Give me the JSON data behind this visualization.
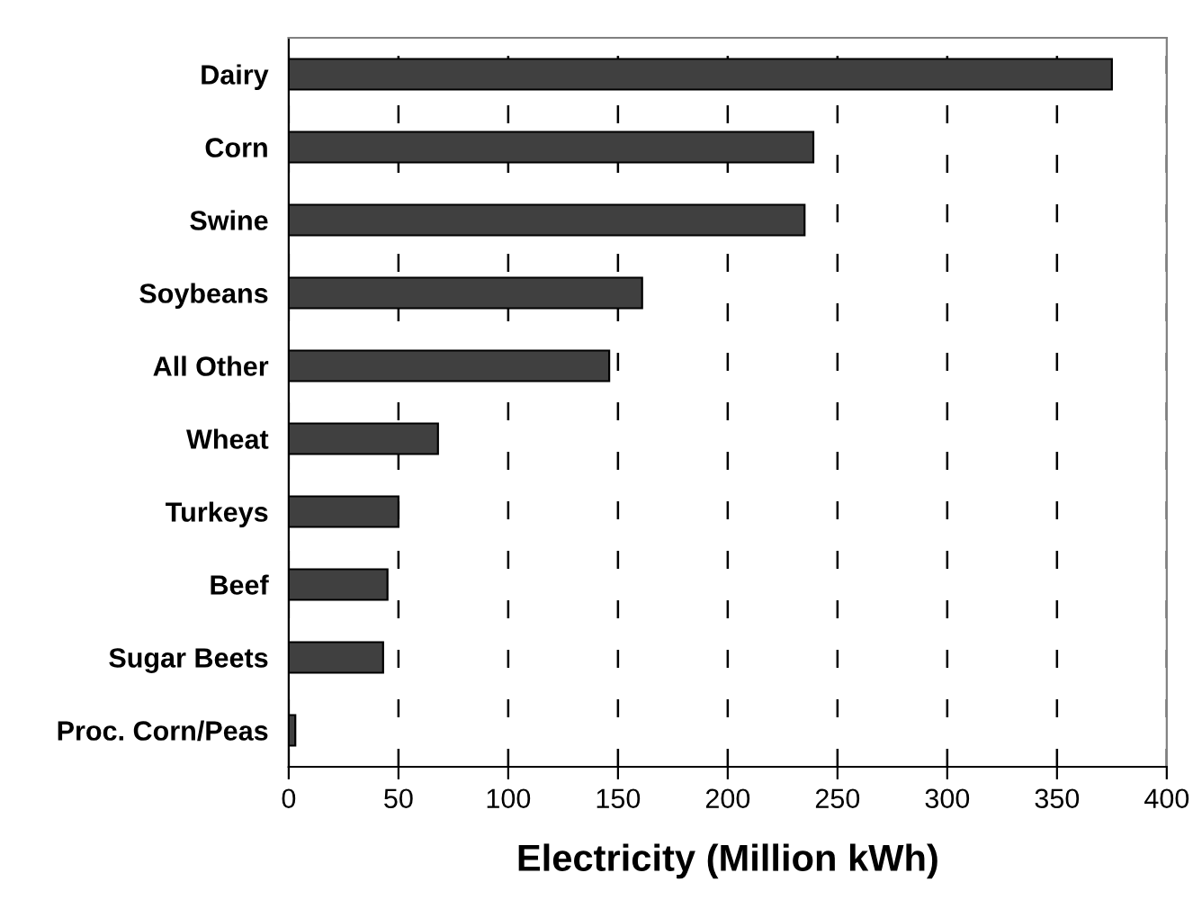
{
  "chart_data": {
    "type": "bar",
    "orientation": "horizontal",
    "xlabel": "Electricity (Million kWh)",
    "categories": [
      "Dairy",
      "Corn",
      "Swine",
      "Soybeans",
      "All Other",
      "Wheat",
      "Turkeys",
      "Beef",
      "Sugar Beets",
      "Proc. Corn/Peas"
    ],
    "values": [
      375,
      239,
      235,
      161,
      146,
      68,
      50,
      45,
      43,
      3
    ],
    "color": "#404040",
    "xlim": [
      0,
      400
    ],
    "xticks": [
      0,
      50,
      100,
      150,
      200,
      250,
      300,
      350,
      400
    ],
    "grid": "x",
    "line_style": "dashed"
  }
}
